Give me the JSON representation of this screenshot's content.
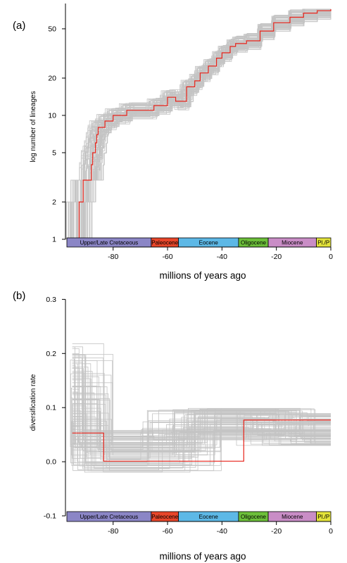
{
  "panels": [
    {
      "panel_label": "(a)",
      "chart_data": {
        "type": "line",
        "xlabel": "millions of years ago",
        "ylabel": "log number of lineages",
        "xlim": [
          -97,
          0
        ],
        "ylim": [
          1,
          80
        ],
        "log_y": true,
        "grid": false,
        "x_ticks": [
          -80,
          -60,
          -40,
          -20,
          0
        ],
        "x_tick_labels": [
          "-80",
          "-60",
          "-40",
          "-20",
          "0"
        ],
        "y_ticks": [
          1,
          2,
          5,
          10,
          20,
          50
        ],
        "y_tick_labels": [
          "1",
          "2",
          "5",
          "10",
          "20",
          "50"
        ],
        "series": [
          {
            "color": "#e8231a",
            "step": true,
            "x": [
              -97,
              -92.5,
              -91,
              -88,
              -87.5,
              -86.5,
              -86,
              -85.5,
              -83,
              -80,
              -75,
              -70,
              -65,
              -60,
              -57,
              -53,
              -50,
              -48,
              -45,
              -42,
              -40,
              -37,
              -35,
              -31,
              -26,
              -21,
              -15,
              -10,
              -5,
              0
            ],
            "y": [
              1,
              2,
              3,
              4,
              5,
              6,
              7,
              8,
              9,
              10,
              11,
              11,
              12,
              14,
              13,
              17,
              19,
              22,
              25,
              29,
              32,
              36,
              38,
              40,
              48,
              56,
              62,
              67,
              70,
              72
            ]
          }
        ],
        "band_note": "grey envelope of ~100 alternative lineage-through-time curves"
      }
    },
    {
      "panel_label": "(b)",
      "chart_data": {
        "type": "line",
        "xlabel": "millions of years ago",
        "ylabel": "diversification rate",
        "xlim": [
          -97,
          0
        ],
        "ylim": [
          -0.1,
          0.32
        ],
        "log_y": false,
        "grid": false,
        "x_ticks": [
          -80,
          -60,
          -40,
          -20,
          0
        ],
        "x_tick_labels": [
          "-80",
          "-60",
          "-40",
          "-20",
          "0"
        ],
        "y_ticks": [
          -0.1,
          0.0,
          0.1,
          0.2,
          0.3
        ],
        "y_tick_labels": [
          "-0.1",
          "0.0",
          "0.1",
          "0.2",
          "0.3"
        ],
        "series": [
          {
            "color": "#e8231a",
            "step": true,
            "x": [
              -95,
              -83.5,
              -32,
              0
            ],
            "y": [
              0.053,
              0.001,
              0.077,
              0.077
            ]
          }
        ],
        "band_note": "grey envelope of ~100 alternative rate-through-time curves"
      }
    }
  ],
  "timescale": [
    {
      "label": "Upper/Late Cretaceous",
      "start": -100.5,
      "end": -66.0,
      "color": "#8b86c6"
    },
    {
      "label": "Paleocene",
      "start": -66.0,
      "end": -56.0,
      "color": "#e8462a"
    },
    {
      "label": "Eocene",
      "start": -56.0,
      "end": -33.9,
      "color": "#5db8e6"
    },
    {
      "label": "Oligocene",
      "start": -33.9,
      "end": -23.0,
      "color": "#6cbf3a"
    },
    {
      "label": "Miocene",
      "start": -23.0,
      "end": -5.3,
      "color": "#c98dc6"
    },
    {
      "label": "Pl./P",
      "start": -5.3,
      "end": 0,
      "color": "#e3e33a"
    }
  ],
  "colors": {
    "red_line": "#e8231a",
    "grey_band": "#c4c4c4",
    "axis": "#000000"
  }
}
